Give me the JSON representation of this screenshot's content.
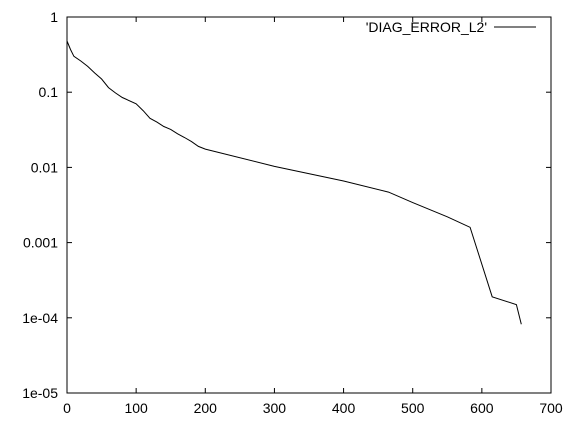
{
  "chart_data": {
    "type": "line",
    "title": "",
    "xlabel": "",
    "ylabel": "",
    "xlim": [
      0,
      700
    ],
    "ylim": [
      1e-05,
      1
    ],
    "yscale": "log",
    "grid": false,
    "legend_position": "top-right",
    "x_ticks": [
      0,
      100,
      200,
      300,
      400,
      500,
      600,
      700
    ],
    "x_tick_labels": [
      "0",
      "100",
      "200",
      "300",
      "400",
      "500",
      "600",
      "700"
    ],
    "y_ticks": [
      1,
      0.1,
      0.01,
      0.001,
      0.0001,
      1e-05
    ],
    "y_tick_labels": [
      "1",
      "0.1",
      "0.01",
      "0.001",
      "1e-04",
      "1e-05"
    ],
    "series": [
      {
        "name": "'DIAG_ERROR_L2'",
        "color": "#000000",
        "x": [
          0,
          5,
          10,
          20,
          30,
          40,
          50,
          60,
          70,
          80,
          100,
          110,
          120,
          130,
          140,
          150,
          160,
          170,
          180,
          190,
          200,
          300,
          400,
          465,
          500,
          550,
          583,
          615,
          650,
          657
        ],
        "y": [
          0.48,
          0.37,
          0.3,
          0.26,
          0.22,
          0.18,
          0.15,
          0.115,
          0.098,
          0.085,
          0.07,
          0.057,
          0.045,
          0.04,
          0.035,
          0.032,
          0.028,
          0.025,
          0.022,
          0.019,
          0.0175,
          0.0103,
          0.0066,
          0.0047,
          0.0034,
          0.0022,
          0.0016,
          0.00019,
          0.00015,
          8.2e-05
        ]
      }
    ]
  }
}
